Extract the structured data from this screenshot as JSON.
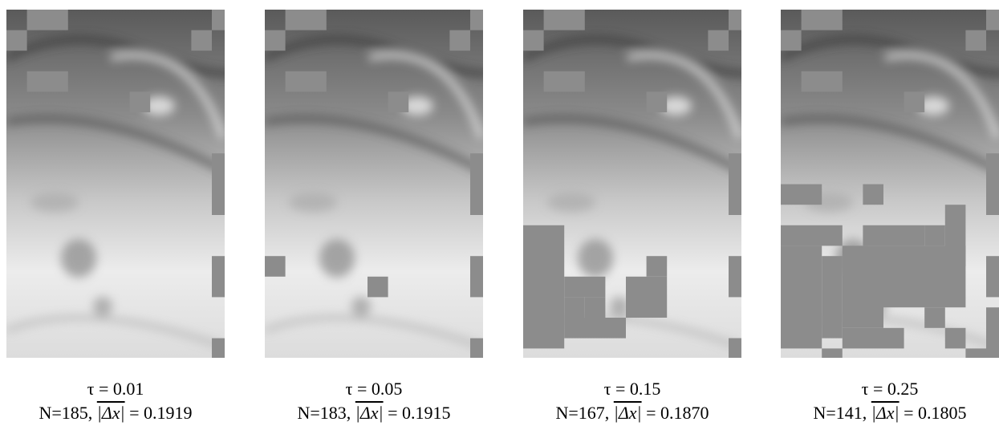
{
  "panels": [
    {
      "tau": "τ = 0.01",
      "n": "N=185,",
      "stat_symbol": "|Δx|",
      "stat_value": "= 0.1919"
    },
    {
      "tau": "τ = 0.05",
      "n": "N=183,",
      "stat_symbol": "|Δx|",
      "stat_value": "= 0.1915"
    },
    {
      "tau": "τ = 0.15",
      "n": "N=167,",
      "stat_symbol": "|Δx|",
      "stat_value": "= 0.1870"
    },
    {
      "tau": "τ = 0.25",
      "n": "N=141,",
      "stat_symbol": "|Δx|",
      "stat_value": "= 0.1805"
    }
  ]
}
